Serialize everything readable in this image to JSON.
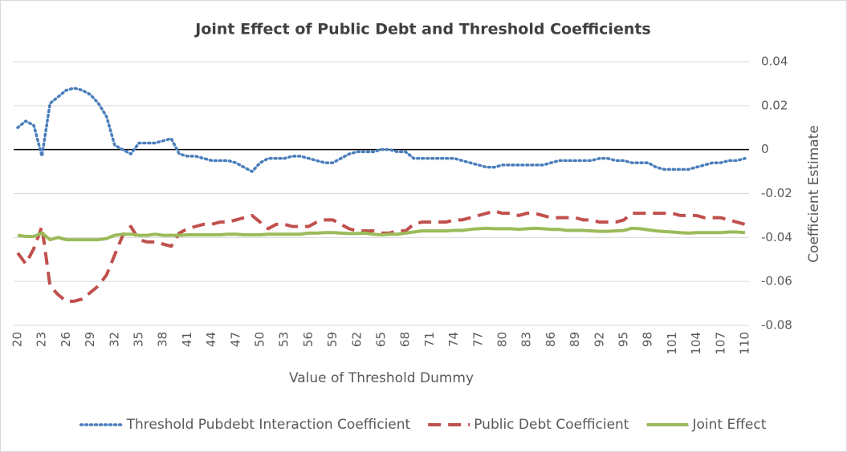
{
  "chart_data": {
    "type": "line",
    "title": "Joint Effect of Public Debt and Threshold Coefficients",
    "x_label": "Value of Threshold Dummy",
    "y_label": "Coefficient Estimate",
    "x": [
      20,
      21,
      22,
      23,
      24,
      25,
      26,
      27,
      28,
      29,
      30,
      31,
      32,
      33,
      34,
      35,
      36,
      37,
      38,
      39,
      40,
      41,
      42,
      43,
      44,
      45,
      46,
      47,
      48,
      49,
      50,
      51,
      52,
      53,
      54,
      55,
      56,
      57,
      58,
      59,
      60,
      61,
      62,
      63,
      64,
      65,
      66,
      67,
      68,
      69,
      70,
      71,
      72,
      73,
      74,
      75,
      76,
      77,
      78,
      79,
      80,
      81,
      82,
      83,
      84,
      85,
      86,
      87,
      88,
      89,
      90,
      91,
      92,
      93,
      94,
      95,
      96,
      97,
      98,
      99,
      100,
      101,
      102,
      103,
      104,
      105,
      106,
      107,
      108,
      109,
      110
    ],
    "xlim": [
      19.5,
      110.5
    ],
    "xticks": [
      20,
      23,
      26,
      29,
      32,
      35,
      38,
      41,
      44,
      47,
      50,
      53,
      56,
      59,
      62,
      65,
      68,
      71,
      74,
      77,
      80,
      83,
      86,
      89,
      92,
      95,
      98,
      101,
      104,
      107,
      110
    ],
    "ylim": [
      -0.08,
      0.04
    ],
    "yticks": [
      -0.08,
      -0.06,
      -0.04,
      -0.02,
      0,
      0.02,
      0.04
    ],
    "y_axis_side": "right",
    "grid": true,
    "legend": "bottom",
    "series": [
      {
        "name": "Threshold Pubdebt Interaction Coefficient",
        "color": "#4a7ebb",
        "style": "dotted",
        "values": [
          0.01,
          0.013,
          0.011,
          -0.003,
          0.021,
          0.024,
          0.027,
          0.028,
          0.027,
          0.025,
          0.021,
          0.015,
          0.002,
          0.0,
          -0.002,
          0.003,
          0.003,
          0.003,
          0.004,
          0.005,
          -0.002,
          -0.003,
          -0.003,
          -0.004,
          -0.005,
          -0.005,
          -0.005,
          -0.006,
          -0.008,
          -0.01,
          -0.006,
          -0.004,
          -0.004,
          -0.004,
          -0.003,
          -0.003,
          -0.004,
          -0.005,
          -0.006,
          -0.006,
          -0.004,
          -0.002,
          -0.001,
          -0.001,
          -0.001,
          0.0,
          0.0,
          -0.001,
          -0.001,
          -0.004,
          -0.004,
          -0.004,
          -0.004,
          -0.004,
          -0.004,
          -0.005,
          -0.006,
          -0.007,
          -0.008,
          -0.008,
          -0.007,
          -0.007,
          -0.007,
          -0.007,
          -0.007,
          -0.007,
          -0.006,
          -0.005,
          -0.005,
          -0.005,
          -0.005,
          -0.005,
          -0.004,
          -0.004,
          -0.005,
          -0.005,
          -0.006,
          -0.006,
          -0.006,
          -0.008,
          -0.009,
          -0.009,
          -0.009,
          -0.009,
          -0.008,
          -0.007,
          -0.006,
          -0.006,
          -0.005,
          -0.005,
          -0.004
        ]
      },
      {
        "name": "Public Debt Coefficient",
        "color": "#c0504d",
        "style": "dashed",
        "values": [
          -0.047,
          -0.052,
          -0.045,
          -0.035,
          -0.062,
          -0.066,
          -0.069,
          -0.069,
          -0.068,
          -0.065,
          -0.062,
          -0.057,
          -0.048,
          -0.039,
          -0.035,
          -0.041,
          -0.042,
          -0.042,
          -0.043,
          -0.044,
          -0.038,
          -0.036,
          -0.035,
          -0.034,
          -0.034,
          -0.033,
          -0.033,
          -0.032,
          -0.031,
          -0.03,
          -0.033,
          -0.036,
          -0.034,
          -0.034,
          -0.035,
          -0.035,
          -0.035,
          -0.033,
          -0.032,
          -0.032,
          -0.034,
          -0.036,
          -0.037,
          -0.037,
          -0.037,
          -0.038,
          -0.038,
          -0.037,
          -0.037,
          -0.034,
          -0.033,
          -0.033,
          -0.033,
          -0.033,
          -0.032,
          -0.032,
          -0.031,
          -0.03,
          -0.029,
          -0.028,
          -0.029,
          -0.029,
          -0.03,
          -0.029,
          -0.029,
          -0.03,
          -0.031,
          -0.031,
          -0.031,
          -0.031,
          -0.032,
          -0.032,
          -0.033,
          -0.033,
          -0.033,
          -0.032,
          -0.029,
          -0.029,
          -0.029,
          -0.029,
          -0.029,
          -0.029,
          -0.03,
          -0.03,
          -0.03,
          -0.031,
          -0.031,
          -0.031,
          -0.032,
          -0.033,
          -0.034
        ]
      },
      {
        "name": "Joint Effect",
        "color": "#9bbb59",
        "style": "solid",
        "values": [
          -0.039,
          -0.0395,
          -0.0395,
          -0.038,
          -0.041,
          -0.04,
          -0.041,
          -0.041,
          -0.041,
          -0.041,
          -0.041,
          -0.0405,
          -0.039,
          -0.0385,
          -0.0385,
          -0.039,
          -0.039,
          -0.0385,
          -0.039,
          -0.039,
          -0.039,
          -0.0388,
          -0.0388,
          -0.0388,
          -0.0388,
          -0.0388,
          -0.0385,
          -0.0385,
          -0.0388,
          -0.0388,
          -0.0388,
          -0.0385,
          -0.0385,
          -0.0385,
          -0.0385,
          -0.0385,
          -0.038,
          -0.038,
          -0.0378,
          -0.0378,
          -0.038,
          -0.0382,
          -0.0382,
          -0.038,
          -0.0385,
          -0.0388,
          -0.0385,
          -0.0385,
          -0.038,
          -0.0375,
          -0.037,
          -0.037,
          -0.037,
          -0.037,
          -0.0368,
          -0.0368,
          -0.0363,
          -0.036,
          -0.0358,
          -0.036,
          -0.036,
          -0.036,
          -0.0363,
          -0.036,
          -0.0358,
          -0.036,
          -0.0363,
          -0.0363,
          -0.0368,
          -0.0368,
          -0.0368,
          -0.037,
          -0.0372,
          -0.0372,
          -0.037,
          -0.0368,
          -0.0358,
          -0.036,
          -0.0365,
          -0.037,
          -0.0373,
          -0.0375,
          -0.0378,
          -0.038,
          -0.0378,
          -0.0378,
          -0.0378,
          -0.0378,
          -0.0375,
          -0.0375,
          -0.0378
        ]
      }
    ]
  }
}
